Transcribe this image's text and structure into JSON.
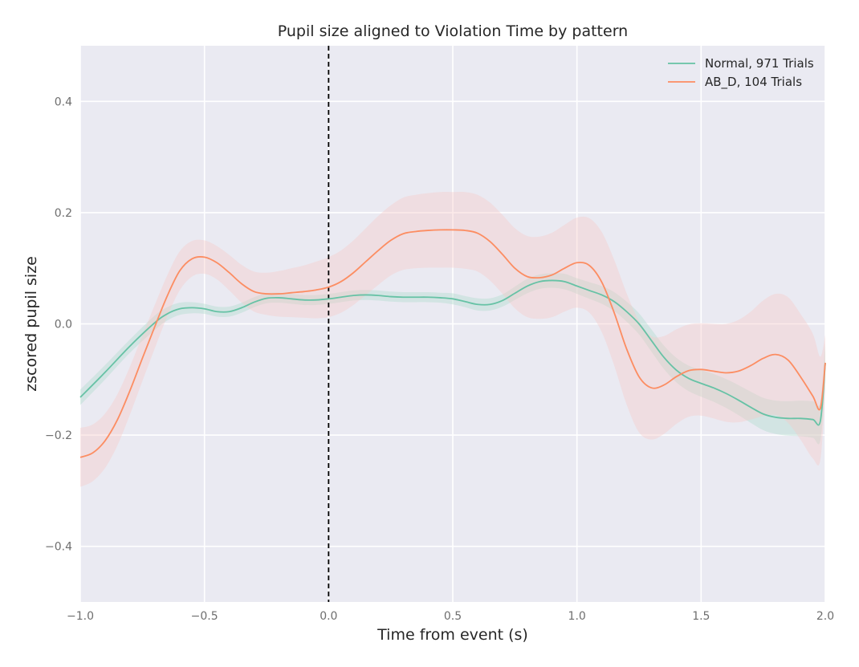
{
  "chart_data": {
    "type": "line",
    "title": "Pupil size aligned to Violation Time by pattern",
    "xlabel": "Time from event (s)",
    "ylabel": "zscored pupil size",
    "xlim": [
      -1.0,
      2.0
    ],
    "ylim": [
      -0.5,
      0.5
    ],
    "xticks": [
      -1.0,
      -0.5,
      0.0,
      0.5,
      1.0,
      1.5,
      2.0
    ],
    "xtick_labels": [
      "−1.0",
      "−0.5",
      "0.0",
      "0.5",
      "1.0",
      "1.5",
      "2.0"
    ],
    "yticks": [
      -0.4,
      -0.2,
      0.0,
      0.2,
      0.4
    ],
    "ytick_labels": [
      "−0.4",
      "−0.2",
      "0.0",
      "0.2",
      "0.4"
    ],
    "grid": true,
    "legend_position": "top-right",
    "event_line": {
      "x": 0.0,
      "style": "dashed",
      "color": "#000000"
    },
    "series": [
      {
        "name": "Normal, 971 Trials",
        "color": "#66c2a5",
        "x": [
          -1.0,
          -0.9,
          -0.8,
          -0.7,
          -0.65,
          -0.6,
          -0.55,
          -0.5,
          -0.45,
          -0.4,
          -0.35,
          -0.3,
          -0.25,
          -0.2,
          -0.15,
          -0.1,
          -0.05,
          0.0,
          0.05,
          0.1,
          0.15,
          0.2,
          0.25,
          0.3,
          0.35,
          0.4,
          0.45,
          0.5,
          0.55,
          0.6,
          0.65,
          0.7,
          0.75,
          0.8,
          0.85,
          0.9,
          0.95,
          1.0,
          1.05,
          1.1,
          1.15,
          1.2,
          1.25,
          1.3,
          1.35,
          1.4,
          1.45,
          1.5,
          1.55,
          1.6,
          1.65,
          1.7,
          1.75,
          1.8,
          1.85,
          1.9,
          1.95,
          1.98,
          2.0
        ],
        "y": [
          -0.132,
          -0.087,
          -0.04,
          0.002,
          0.018,
          0.027,
          0.029,
          0.027,
          0.022,
          0.022,
          0.029,
          0.039,
          0.046,
          0.047,
          0.045,
          0.043,
          0.043,
          0.045,
          0.048,
          0.051,
          0.052,
          0.051,
          0.049,
          0.048,
          0.048,
          0.048,
          0.047,
          0.045,
          0.04,
          0.035,
          0.035,
          0.042,
          0.055,
          0.068,
          0.076,
          0.078,
          0.076,
          0.068,
          0.06,
          0.052,
          0.04,
          0.022,
          0.0,
          -0.03,
          -0.06,
          -0.083,
          -0.098,
          -0.107,
          -0.115,
          -0.125,
          -0.137,
          -0.15,
          -0.162,
          -0.168,
          -0.17,
          -0.17,
          -0.172,
          -0.175,
          -0.07
        ],
        "lower": [
          -0.146,
          -0.1,
          -0.052,
          -0.011,
          0.006,
          0.016,
          0.019,
          0.018,
          0.013,
          0.013,
          0.02,
          0.03,
          0.037,
          0.038,
          0.036,
          0.034,
          0.034,
          0.036,
          0.039,
          0.042,
          0.043,
          0.042,
          0.04,
          0.039,
          0.039,
          0.039,
          0.038,
          0.035,
          0.03,
          0.024,
          0.024,
          0.031,
          0.043,
          0.055,
          0.063,
          0.065,
          0.062,
          0.054,
          0.045,
          0.036,
          0.023,
          0.004,
          -0.019,
          -0.05,
          -0.081,
          -0.105,
          -0.121,
          -0.131,
          -0.14,
          -0.151,
          -0.164,
          -0.178,
          -0.191,
          -0.198,
          -0.201,
          -0.202,
          -0.205,
          -0.21,
          -0.105
        ],
        "upper": [
          -0.118,
          -0.074,
          -0.028,
          0.015,
          0.03,
          0.038,
          0.039,
          0.036,
          0.031,
          0.031,
          0.038,
          0.048,
          0.055,
          0.056,
          0.054,
          0.052,
          0.052,
          0.054,
          0.057,
          0.06,
          0.061,
          0.06,
          0.058,
          0.057,
          0.057,
          0.057,
          0.056,
          0.055,
          0.05,
          0.046,
          0.046,
          0.053,
          0.067,
          0.081,
          0.089,
          0.091,
          0.09,
          0.082,
          0.075,
          0.068,
          0.057,
          0.04,
          0.019,
          -0.01,
          -0.039,
          -0.061,
          -0.075,
          -0.083,
          -0.09,
          -0.099,
          -0.11,
          -0.122,
          -0.133,
          -0.138,
          -0.139,
          -0.138,
          -0.139,
          -0.14,
          -0.035
        ]
      },
      {
        "name": "AB_D, 104 Trials",
        "color": "#fc8d62",
        "x": [
          -1.0,
          -0.95,
          -0.9,
          -0.85,
          -0.8,
          -0.75,
          -0.7,
          -0.65,
          -0.6,
          -0.55,
          -0.5,
          -0.45,
          -0.4,
          -0.35,
          -0.3,
          -0.25,
          -0.2,
          -0.15,
          -0.1,
          -0.05,
          0.0,
          0.05,
          0.1,
          0.15,
          0.2,
          0.25,
          0.3,
          0.35,
          0.4,
          0.45,
          0.5,
          0.55,
          0.6,
          0.65,
          0.7,
          0.75,
          0.8,
          0.85,
          0.9,
          0.95,
          1.0,
          1.05,
          1.1,
          1.15,
          1.2,
          1.25,
          1.3,
          1.35,
          1.4,
          1.45,
          1.5,
          1.55,
          1.6,
          1.65,
          1.7,
          1.75,
          1.8,
          1.85,
          1.9,
          1.95,
          1.98,
          2.0
        ],
        "y": [
          -0.24,
          -0.232,
          -0.21,
          -0.172,
          -0.12,
          -0.062,
          -0.005,
          0.05,
          0.095,
          0.117,
          0.12,
          0.11,
          0.092,
          0.072,
          0.058,
          0.054,
          0.054,
          0.056,
          0.058,
          0.061,
          0.066,
          0.076,
          0.092,
          0.112,
          0.132,
          0.15,
          0.162,
          0.166,
          0.168,
          0.169,
          0.169,
          0.168,
          0.163,
          0.148,
          0.125,
          0.1,
          0.085,
          0.083,
          0.088,
          0.1,
          0.11,
          0.105,
          0.075,
          0.02,
          -0.045,
          -0.095,
          -0.115,
          -0.11,
          -0.095,
          -0.084,
          -0.082,
          -0.085,
          -0.088,
          -0.085,
          -0.075,
          -0.062,
          -0.055,
          -0.065,
          -0.095,
          -0.13,
          -0.152,
          -0.07
        ],
        "lower": [
          -0.293,
          -0.283,
          -0.259,
          -0.218,
          -0.163,
          -0.103,
          -0.044,
          0.013,
          0.06,
          0.085,
          0.09,
          0.08,
          0.06,
          0.038,
          0.022,
          0.016,
          0.013,
          0.012,
          0.011,
          0.01,
          0.012,
          0.02,
          0.034,
          0.052,
          0.07,
          0.087,
          0.097,
          0.1,
          0.101,
          0.101,
          0.101,
          0.099,
          0.094,
          0.078,
          0.054,
          0.028,
          0.012,
          0.009,
          0.012,
          0.022,
          0.029,
          0.02,
          -0.015,
          -0.075,
          -0.145,
          -0.195,
          -0.208,
          -0.198,
          -0.18,
          -0.167,
          -0.165,
          -0.17,
          -0.176,
          -0.177,
          -0.172,
          -0.166,
          -0.164,
          -0.178,
          -0.208,
          -0.242,
          -0.245,
          -0.12
        ],
        "upper": [
          -0.187,
          -0.181,
          -0.161,
          -0.126,
          -0.077,
          -0.021,
          0.034,
          0.087,
          0.13,
          0.149,
          0.15,
          0.14,
          0.124,
          0.106,
          0.094,
          0.092,
          0.095,
          0.1,
          0.105,
          0.112,
          0.12,
          0.132,
          0.15,
          0.172,
          0.194,
          0.213,
          0.227,
          0.232,
          0.235,
          0.237,
          0.237,
          0.237,
          0.232,
          0.218,
          0.196,
          0.172,
          0.158,
          0.157,
          0.164,
          0.178,
          0.191,
          0.19,
          0.165,
          0.115,
          0.055,
          0.005,
          -0.022,
          -0.022,
          -0.01,
          -0.001,
          0.001,
          0.0,
          0.0,
          0.007,
          0.022,
          0.042,
          0.054,
          0.048,
          0.018,
          -0.018,
          -0.059,
          -0.02
        ]
      }
    ]
  }
}
